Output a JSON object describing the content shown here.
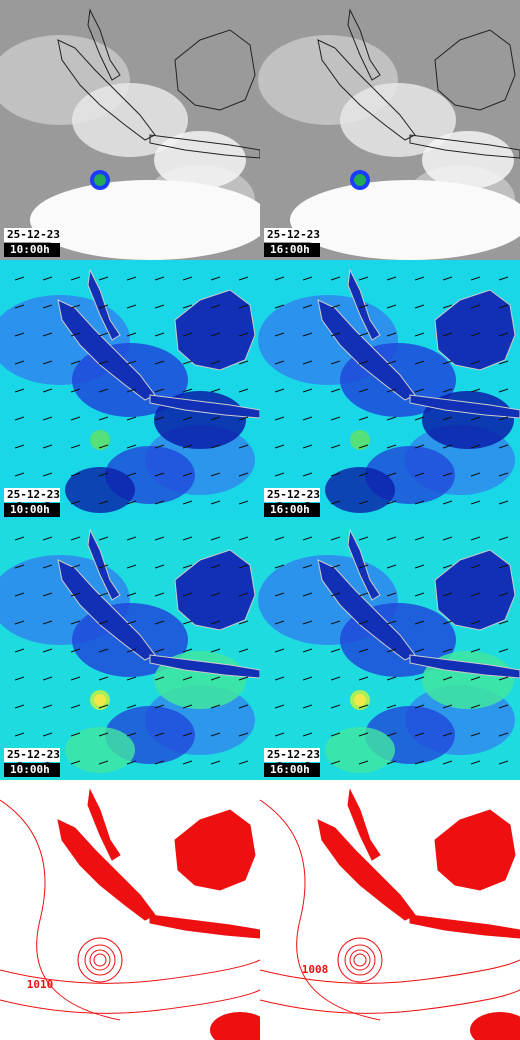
{
  "rows": [
    {
      "kind": "satellite",
      "cells": [
        {
          "date": "25-12-23",
          "time": "10:00h"
        },
        {
          "date": "25-12-23",
          "time": "16:00h"
        }
      ]
    },
    {
      "kind": "wind",
      "cells": [
        {
          "date": "25-12-23",
          "time": "10:00h"
        },
        {
          "date": "25-12-23",
          "time": "16:00h"
        }
      ]
    },
    {
      "kind": "gust",
      "cells": [
        {
          "date": "25-12-23",
          "time": "10:00h"
        },
        {
          "date": "25-12-23",
          "time": "16:00h"
        }
      ]
    },
    {
      "kind": "pressure",
      "cells": [
        {
          "contour_label": "1010"
        },
        {
          "contour_label": "1008"
        }
      ]
    }
  ]
}
